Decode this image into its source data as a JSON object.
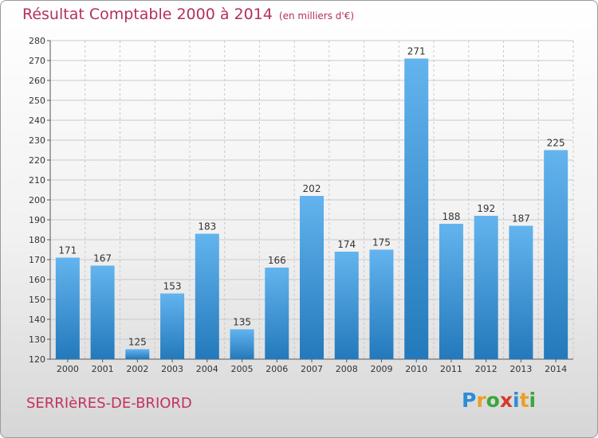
{
  "header": {
    "title": "Résultat Comptable 2000 à 2014",
    "unit": "(en milliers d'€)"
  },
  "footer": {
    "commune": "SERRIèRES-DE-BRIORD"
  },
  "brand": {
    "letters": [
      "P",
      "r",
      "o",
      "x",
      "i",
      "t",
      "i"
    ],
    "colors": [
      "#2e8bd8",
      "#e8a02a",
      "#3aa63a",
      "#d63a2a",
      "#2e8bd8",
      "#e8a02a",
      "#3aa63a"
    ]
  },
  "colors": {
    "bar_top": "#63b4ee",
    "bar_bottom": "#2379bb",
    "label": "#333333"
  },
  "chart_data": {
    "type": "bar",
    "categories": [
      "2000",
      "2001",
      "2002",
      "2003",
      "2004",
      "2005",
      "2006",
      "2007",
      "2008",
      "2009",
      "2010",
      "2011",
      "2012",
      "2013",
      "2014"
    ],
    "values": [
      171,
      167,
      125,
      153,
      183,
      135,
      166,
      202,
      174,
      175,
      271,
      188,
      192,
      187,
      225
    ],
    "ylim": [
      120,
      280
    ],
    "yticks": [
      120,
      130,
      140,
      150,
      160,
      170,
      180,
      190,
      200,
      210,
      220,
      230,
      240,
      250,
      260,
      270,
      280
    ],
    "grid": true
  }
}
